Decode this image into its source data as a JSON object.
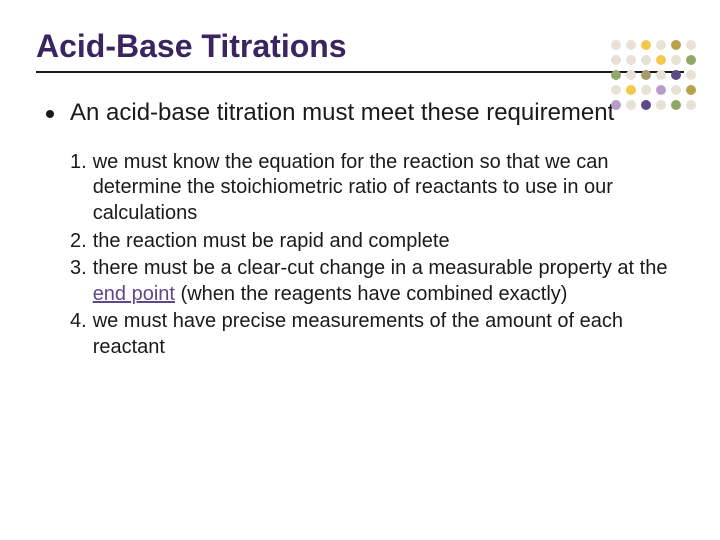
{
  "title": {
    "text": "Acid-Base Titrations",
    "color": "#3a2560"
  },
  "intro": {
    "text": "An acid-base titration must meet these requirement"
  },
  "items": [
    {
      "num": "1.",
      "pre": "we must know the equation for the reaction so that we can determine the stoichiometric ratio of reactants to use in our calculations"
    },
    {
      "num": "2.",
      "pre": "the reaction must be rapid and complete"
    },
    {
      "num": "3.",
      "pre": "there must be a clear-cut change in a measurable property at the ",
      "accent": "end point",
      "post": " (when the reagents have combined exactly)"
    },
    {
      "num": "4.",
      "pre": "we must have precise measurements of the amount of each reactant"
    }
  ],
  "accent_color": "#5b4a87",
  "dot_grid": {
    "default_color": "#e6e2d6",
    "rows": 5,
    "cols": 6,
    "dots": [
      {
        "r": 0,
        "c": 2,
        "color": "#f2c94c"
      },
      {
        "r": 0,
        "c": 4,
        "color": "#b8a24a"
      },
      {
        "r": 1,
        "c": 3,
        "color": "#f2c94c"
      },
      {
        "r": 1,
        "c": 5,
        "color": "#8fa86a"
      },
      {
        "r": 2,
        "c": 0,
        "color": "#8fa86a"
      },
      {
        "r": 2,
        "c": 2,
        "color": "#a89a6e"
      },
      {
        "r": 2,
        "c": 4,
        "color": "#5b4a87"
      },
      {
        "r": 3,
        "c": 1,
        "color": "#f2c94c"
      },
      {
        "r": 3,
        "c": 3,
        "color": "#b69ec9"
      },
      {
        "r": 3,
        "c": 5,
        "color": "#b8a24a"
      },
      {
        "r": 4,
        "c": 0,
        "color": "#b69ec9"
      },
      {
        "r": 4,
        "c": 2,
        "color": "#5b4a87"
      },
      {
        "r": 4,
        "c": 4,
        "color": "#8fa86a"
      }
    ]
  }
}
